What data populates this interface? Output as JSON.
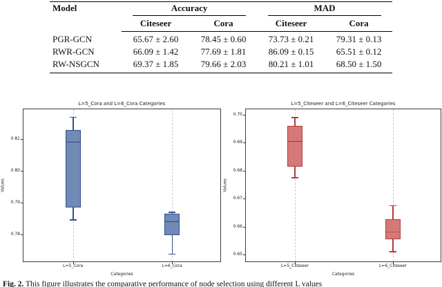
{
  "table": {
    "col_model": "Model",
    "group_accuracy": "Accuracy",
    "group_mad": "MAD",
    "sub_acc_citeseer": "Citeseer",
    "sub_acc_cora": "Cora",
    "sub_mad_citeseer": "Citeseer",
    "sub_mad_cora": "Cora",
    "rows": [
      {
        "model": "PGR-GCN",
        "acc_citeseer": "65.67 ± 2.60",
        "acc_cora": "78.45 ± 0.60",
        "mad_citeseer": "73.73 ± 0.21",
        "mad_cora": "79.31 ± 0.13"
      },
      {
        "model": "RWR-GCN",
        "acc_citeseer": "66.09 ± 1.42",
        "acc_cora": "77.69 ± 1.81",
        "mad_citeseer": "86.09 ± 0.15",
        "mad_cora": "65.51 ± 0.12"
      },
      {
        "model": "RW-NSGCN",
        "acc_citeseer": "69.37 ± 1.85",
        "acc_cora": "79.66 ± 2.03",
        "mad_citeseer": "80.21 ± 1.01",
        "mad_cora": "68.50 ± 1.50"
      }
    ]
  },
  "caption": {
    "label": "Fig. 2.",
    "text": "This figure illustrates the comparative performance of node selection using different L values"
  },
  "chart_data": [
    {
      "type": "boxplot",
      "title": "L=5_Cora and L=6_Cora Categories",
      "xlabel": "Categories",
      "ylabel": "Values",
      "categories": [
        "L=5_Cora",
        "L=6_Cora"
      ],
      "yticks": [
        "0.81",
        "0.80",
        "0.79",
        "0.78"
      ],
      "ylim": [
        0.771,
        0.8195
      ],
      "grid": "vertical-dashed",
      "colors": {
        "fill": "#7089b5",
        "edge": "#31508e",
        "median": "#2f4a7d"
      },
      "boxes": [
        {
          "category": "L=5_Cora",
          "whislo": 0.7845,
          "q1": 0.7885,
          "med": 0.809,
          "q3": 0.813,
          "whishi": 0.817,
          "median_style": "solid"
        },
        {
          "category": "L=6_Cora",
          "whislo": 0.7737,
          "q1": 0.7798,
          "med": 0.784,
          "q3": 0.7865,
          "whishi": 0.787,
          "median_style": "solid"
        }
      ]
    },
    {
      "type": "boxplot",
      "title": "L=5_Citeseer and L=6_Citeseer Categories",
      "xlabel": "Categories",
      "ylabel": "Values",
      "categories": [
        "L=5_Citeseer",
        "L=6_Citeseer"
      ],
      "yticks": [
        "0.70",
        "0.69",
        "0.68",
        "0.67",
        "0.66",
        "0.65"
      ],
      "ylim": [
        0.647,
        0.702
      ],
      "grid": "vertical-dashed",
      "colors": {
        "fill": "#d47878",
        "edge": "#b23b3b",
        "median": "#9e3535"
      },
      "boxes": [
        {
          "category": "L=5_Citeseer",
          "whislo": 0.6775,
          "q1": 0.6815,
          "med": 0.6905,
          "q3": 0.696,
          "whishi": 0.699,
          "median_style": "solid"
        },
        {
          "category": "L=6_Citeseer",
          "whislo": 0.651,
          "q1": 0.6555,
          "med": 0.658,
          "q3": 0.6625,
          "whishi": 0.6675,
          "median_style": "dotted"
        }
      ]
    }
  ]
}
